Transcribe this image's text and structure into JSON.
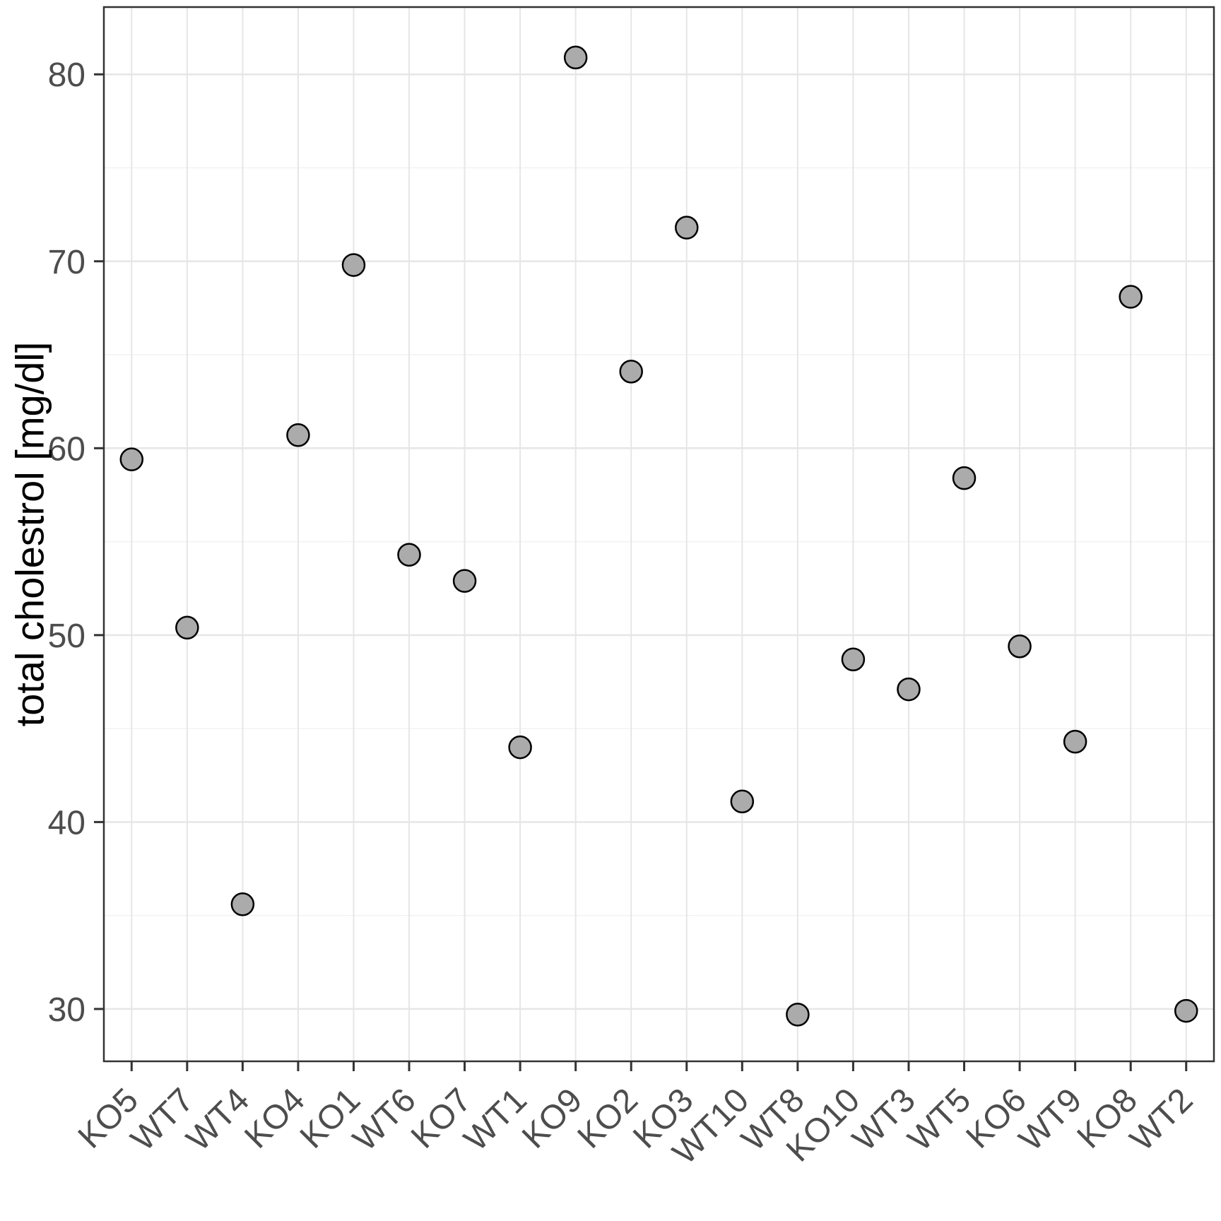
{
  "chart_data": {
    "type": "scatter",
    "title": "",
    "xlabel": "",
    "ylabel": "total cholestrol [mg/dl]",
    "categories": [
      "KO5",
      "WT7",
      "WT4",
      "KO4",
      "KO1",
      "WT6",
      "KO7",
      "WT1",
      "KO9",
      "KO2",
      "KO3",
      "WT10",
      "WT8",
      "KO10",
      "WT3",
      "WT5",
      "KO6",
      "WT9",
      "KO8",
      "WT2"
    ],
    "values": [
      59.4,
      50.4,
      35.6,
      60.7,
      69.8,
      54.3,
      52.9,
      44.0,
      80.9,
      64.1,
      71.8,
      41.1,
      29.7,
      48.7,
      47.1,
      58.4,
      49.4,
      44.3,
      68.1,
      29.9
    ],
    "y_ticks": [
      30,
      40,
      50,
      60,
      70,
      80
    ],
    "y_minor_ticks": [
      35,
      45,
      55,
      65,
      75
    ],
    "ylim": [
      27.2,
      83.6
    ],
    "x_tick_angle_deg": 45,
    "grid": "on",
    "legend": "none",
    "point_style": {
      "fill": "#ababab",
      "stroke": "#000000",
      "radius_px": 15.5
    },
    "colors": {
      "grid_major": "#e6e6e6",
      "grid_minor": "#f2f2f2",
      "axis_text": "#4d4d4d",
      "axis_title": "#000000",
      "panel_border": "#333333",
      "tick_mark": "#333333",
      "background": "#ffffff"
    }
  }
}
